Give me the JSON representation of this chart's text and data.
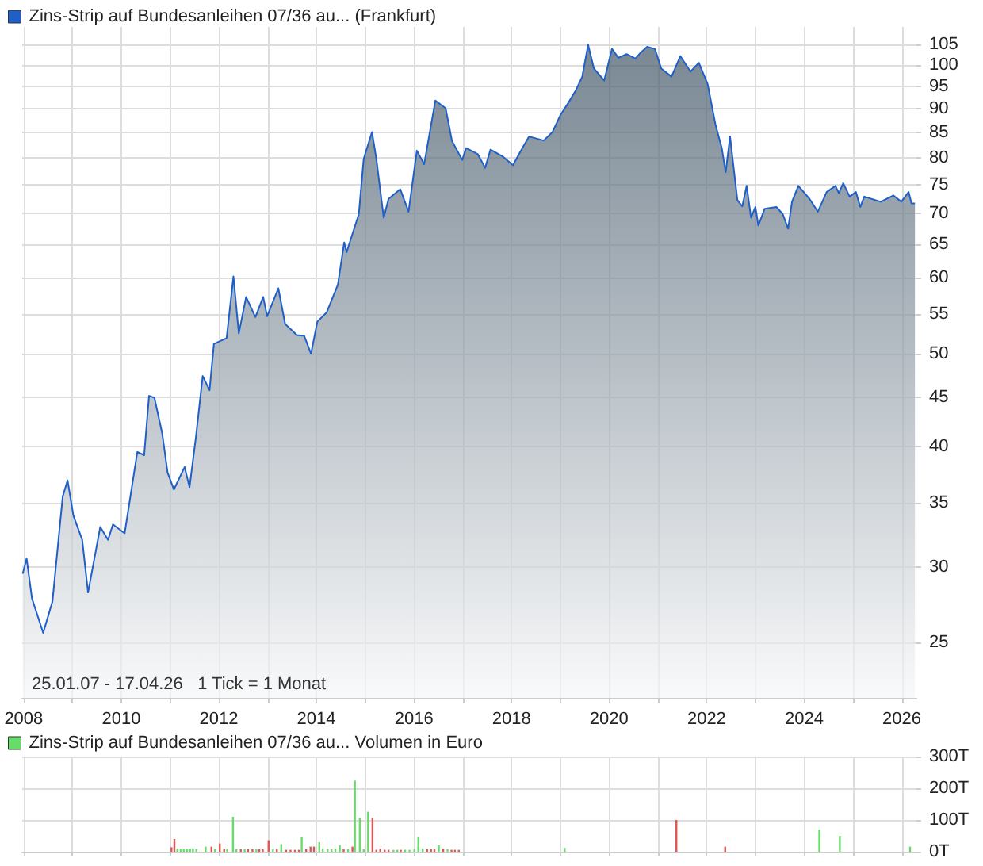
{
  "chart_data": [
    {
      "type": "area",
      "xlim": [
        2007.97,
        2026.3
      ],
      "ylim": [
        21.9,
        109.5
      ],
      "log": true,
      "grid": true,
      "legend": "top left",
      "annotations": [
        "25.01.07 - 17.04.26   1 Tick = 1 Monat"
      ],
      "xticks": [
        2008,
        {
          "value": 2009,
          "label": null
        },
        2010,
        {
          "value": 2011,
          "label": null
        },
        2012,
        {
          "value": 2013,
          "label": null
        },
        2014,
        {
          "value": 2015,
          "label": null
        },
        2016,
        {
          "value": 2017,
          "label": null
        },
        2018,
        {
          "value": 2019,
          "label": null
        },
        2020,
        {
          "value": 2021,
          "label": null
        },
        2022,
        {
          "value": 2023,
          "label": null
        },
        2024,
        {
          "value": 2025,
          "label": null
        },
        2026
      ],
      "yticks": [
        25,
        30,
        35,
        40,
        45,
        50,
        55,
        60,
        65,
        70,
        75,
        80,
        85,
        90,
        95,
        100,
        105
      ],
      "series": [
        {
          "name": "Zins-Strip auf Bundesanleihen 07/36 au... (Frankfurt)",
          "color": "#1f5fc8",
          "x": [
            2007.98,
            2008.06,
            2008.17,
            2008.4,
            2008.59,
            2008.8,
            2008.9,
            2009.02,
            2009.2,
            2009.32,
            2009.57,
            2009.73,
            2009.83,
            2010.07,
            2010.33,
            2010.47,
            2010.57,
            2010.68,
            2010.84,
            2010.95,
            2011.08,
            2011.3,
            2011.4,
            2011.53,
            2011.67,
            2011.81,
            2011.9,
            2012.16,
            2012.3,
            2012.41,
            2012.56,
            2012.75,
            2012.91,
            2012.99,
            2013.22,
            2013.36,
            2013.6,
            2013.75,
            2013.89,
            2014.02,
            2014.21,
            2014.44,
            2014.57,
            2014.62,
            2014.87,
            2014.97,
            2015.14,
            2015.23,
            2015.38,
            2015.48,
            2015.72,
            2015.89,
            2016.06,
            2016.21,
            2016.44,
            2016.65,
            2016.78,
            2016.99,
            2017.07,
            2017.31,
            2017.46,
            2017.57,
            2017.83,
            2018.03,
            2018.17,
            2018.36,
            2018.66,
            2018.84,
            2019.0,
            2019.16,
            2019.32,
            2019.45,
            2019.57,
            2019.69,
            2019.9,
            2020.06,
            2020.19,
            2020.36,
            2020.54,
            2020.65,
            2020.78,
            2020.94,
            2021.07,
            2021.28,
            2021.46,
            2021.67,
            2021.84,
            2022.02,
            2022.18,
            2022.31,
            2022.39,
            2022.48,
            2022.63,
            2022.73,
            2022.82,
            2022.91,
            2023.0,
            2023.06,
            2023.19,
            2023.43,
            2023.56,
            2023.67,
            2023.75,
            2023.88,
            2024.11,
            2024.28,
            2024.46,
            2024.64,
            2024.71,
            2024.8,
            2024.93,
            2025.06,
            2025.15,
            2025.23,
            2025.57,
            2025.83,
            2025.99,
            2026.14,
            2026.2,
            2026.27
          ],
          "values": [
            29.5,
            30.6,
            27.8,
            25.6,
            27.6,
            35.5,
            36.9,
            33.9,
            32.0,
            28.2,
            33.0,
            32.0,
            33.2,
            32.5,
            39.5,
            39.2,
            45.2,
            45.0,
            41.3,
            37.6,
            36.1,
            38.1,
            36.3,
            40.9,
            47.4,
            45.8,
            51.2,
            51.9,
            60.2,
            52.5,
            57.3,
            54.6,
            57.3,
            54.7,
            58.5,
            53.7,
            52.3,
            52.2,
            50.0,
            54.0,
            55.2,
            59.0,
            65.3,
            63.8,
            69.9,
            79.8,
            85.1,
            79.8,
            69.3,
            72.5,
            74.2,
            70.3,
            81.4,
            78.8,
            91.8,
            90.1,
            83.3,
            79.6,
            81.9,
            80.7,
            78.1,
            81.6,
            80.2,
            78.6,
            81.0,
            84.2,
            83.4,
            85.1,
            88.6,
            91.2,
            94.1,
            97.2,
            104.9,
            99.1,
            96.3,
            103.9,
            101.7,
            102.6,
            101.5,
            103.0,
            104.4,
            103.9,
            99.1,
            97.2,
            102.1,
            98.4,
            100.5,
            95.5,
            86.7,
            81.9,
            77.3,
            84.2,
            72.3,
            71.2,
            74.8,
            69.3,
            71.1,
            68.0,
            70.8,
            71.1,
            69.9,
            67.5,
            72.0,
            74.8,
            72.5,
            70.3,
            73.7,
            74.8,
            73.5,
            75.3,
            72.9,
            73.7,
            71.1,
            72.9,
            72.0,
            73.1,
            72.0,
            73.7,
            71.7,
            71.7
          ]
        }
      ]
    },
    {
      "type": "bar",
      "xlim": [
        2007.97,
        2026.3
      ],
      "ylim": [
        0,
        300
      ],
      "grid": true,
      "legend": "top left",
      "tick_labels": "y",
      "xticks": [
        {
          "value": 2008,
          "label": null
        },
        {
          "value": 2009,
          "label": null
        },
        {
          "value": 2010,
          "label": null
        },
        {
          "value": 2011,
          "label": null
        },
        {
          "value": 2012,
          "label": null
        },
        {
          "value": 2013,
          "label": null
        },
        {
          "value": 2014,
          "label": null
        },
        {
          "value": 2015,
          "label": null
        },
        {
          "value": 2016,
          "label": null
        },
        {
          "value": 2017,
          "label": null
        },
        {
          "value": 2018,
          "label": null
        },
        {
          "value": 2019,
          "label": null
        },
        {
          "value": 2020,
          "label": null
        },
        {
          "value": 2021,
          "label": null
        },
        {
          "value": 2022,
          "label": null
        },
        {
          "value": 2023,
          "label": null
        },
        {
          "value": 2024,
          "label": null
        },
        {
          "value": 2025,
          "label": null
        },
        {
          "value": 2026,
          "label": null
        }
      ],
      "yticks": [
        {
          "value": 0,
          "label": "0T"
        },
        {
          "value": 100,
          "label": "100T"
        },
        {
          "value": 200,
          "label": "200T"
        },
        {
          "value": 300,
          "label": "300T"
        }
      ],
      "series": [
        {
          "name": "Zins-Strip auf Bundesanleihen 07/36 au... Volumen in Euro",
          "color": "#66dd66",
          "x": [
            2011.03,
            2011.09,
            2011.15,
            2011.22,
            2011.28,
            2011.35,
            2011.41,
            2011.47,
            2011.54,
            2011.73,
            2011.85,
            2011.92,
            2012.02,
            2012.11,
            2012.17,
            2012.29,
            2012.36,
            2012.45,
            2012.53,
            2012.6,
            2012.69,
            2012.77,
            2012.83,
            2012.9,
            2013.02,
            2013.11,
            2013.19,
            2013.28,
            2013.38,
            2013.47,
            2013.56,
            2013.64,
            2013.7,
            2013.79,
            2013.88,
            2013.95,
            2014.06,
            2014.13,
            2014.23,
            2014.31,
            2014.39,
            2014.48,
            2014.56,
            2014.65,
            2014.74,
            2014.79,
            2014.89,
            2014.97,
            2015.06,
            2015.15,
            2015.23,
            2015.31,
            2015.4,
            2015.48,
            2015.58,
            2015.66,
            2015.73,
            2015.82,
            2015.91,
            2016.01,
            2016.09,
            2016.18,
            2016.27,
            2016.35,
            2016.42,
            2016.51,
            2016.6,
            2016.69,
            2016.77,
            2016.84,
            2016.92,
            2019.09,
            2021.38,
            2022.38,
            2024.31,
            2024.73,
            2026.17
          ],
          "values": [
            14,
            40,
            10,
            10,
            10,
            10,
            10,
            10,
            8,
            16,
            16,
            8,
            26,
            8,
            8,
            110,
            8,
            8,
            8,
            8,
            8,
            8,
            8,
            8,
            36,
            8,
            8,
            24,
            6,
            6,
            6,
            6,
            46,
            8,
            16,
            16,
            30,
            10,
            8,
            8,
            8,
            20,
            8,
            8,
            16,
            224,
            106,
            8,
            126,
            106,
            6,
            10,
            6,
            6,
            6,
            6,
            6,
            6,
            6,
            8,
            46,
            10,
            8,
            8,
            8,
            20,
            10,
            8,
            6,
            6,
            6,
            12,
            100,
            16,
            70,
            50,
            16
          ],
          "colors": [
            "#e05555",
            "#e05555",
            "#66dd66",
            "#66dd66",
            "#66dd66",
            "#66dd66",
            "#66dd66",
            "#66dd66",
            "#66dd66",
            "#66dd66",
            "#e05555",
            "#66dd66",
            "#e05555",
            "#e05555",
            "#66dd66",
            "#66dd66",
            "#66dd66",
            "#e05555",
            "#66dd66",
            "#e05555",
            "#e05555",
            "#66dd66",
            "#e05555",
            "#e05555",
            "#e05555",
            "#66dd66",
            "#e05555",
            "#66dd66",
            "#e05555",
            "#e05555",
            "#e05555",
            "#e05555",
            "#66dd66",
            "#e05555",
            "#e05555",
            "#e05555",
            "#66dd66",
            "#66dd66",
            "#66dd66",
            "#66dd66",
            "#66dd66",
            "#66dd66",
            "#e05555",
            "#66dd66",
            "#e05555",
            "#66dd66",
            "#66dd66",
            "#66dd66",
            "#66dd66",
            "#e05555",
            "#e05555",
            "#e05555",
            "#e05555",
            "#e05555",
            "#66dd66",
            "#66dd66",
            "#e05555",
            "#66dd66",
            "#66dd66",
            "#66dd66",
            "#66dd66",
            "#66dd66",
            "#e05555",
            "#e05555",
            "#e05555",
            "#66dd66",
            "#e05555",
            "#66dd66",
            "#e05555",
            "#e05555",
            "#e05555",
            "#66dd66",
            "#e05555",
            "#e05555",
            "#66dd66",
            "#66dd66",
            "#66dd66"
          ]
        }
      ]
    }
  ]
}
